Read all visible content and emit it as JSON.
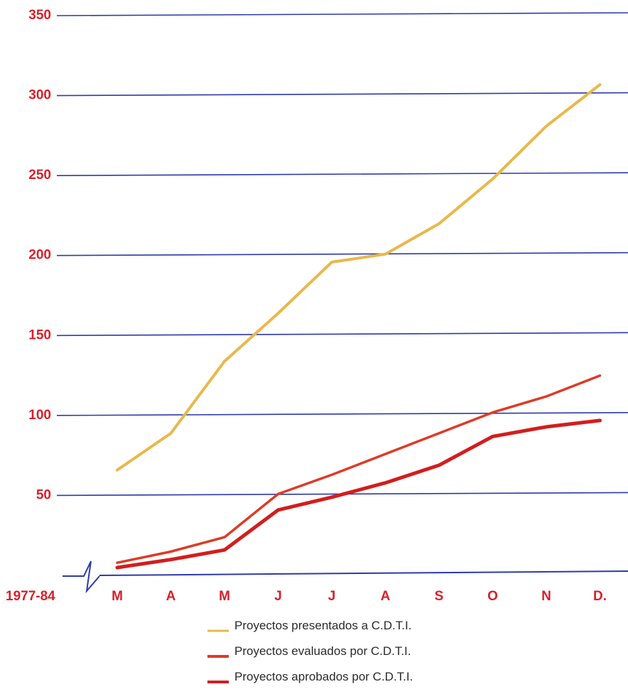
{
  "chart_data": {
    "type": "line",
    "period_label": "1977-84",
    "categories": [
      "M",
      "A",
      "M",
      "J",
      "J",
      "A",
      "S",
      "O",
      "N",
      "D."
    ],
    "ylim": [
      0,
      350
    ],
    "yticks": [
      50,
      100,
      150,
      200,
      250,
      300,
      350
    ],
    "grid": true,
    "legend_position": "bottom",
    "series": [
      {
        "name": "Proyectos presentados a C.D.T.I.",
        "color": "#e8b84a",
        "values": [
          65,
          88,
          133,
          163,
          195,
          200,
          219,
          247,
          280,
          306
        ]
      },
      {
        "name": "Proyectos evaluados por C.D.T.I.",
        "color": "#dd3b26",
        "values": [
          7,
          14,
          23,
          50,
          62,
          75,
          88,
          101,
          111,
          124
        ]
      },
      {
        "name": "Proyectos aprobados por C.D.T.I.",
        "color": "#d21e1e",
        "values": [
          4,
          9,
          15,
          40,
          48,
          57,
          68,
          86,
          92,
          96
        ]
      }
    ]
  },
  "colors": {
    "tick_label": "#d8202a",
    "grid": "#2c3aa8",
    "axis": "#2c3aa8"
  }
}
